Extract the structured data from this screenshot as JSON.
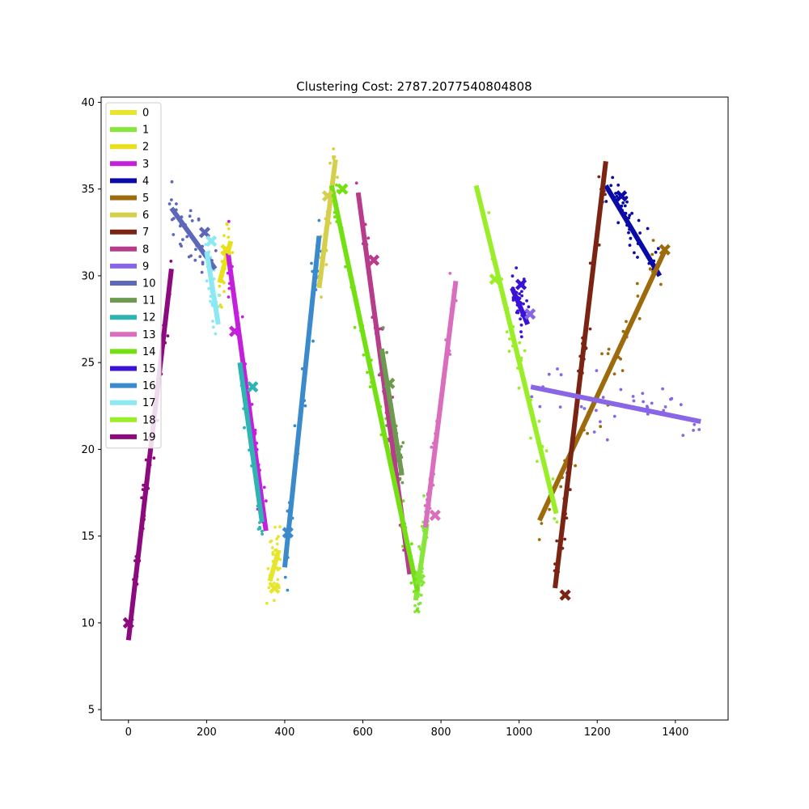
{
  "chart_data": {
    "type": "scatter",
    "title": "Clustering Cost: 2787.2077540804808",
    "xlabel": "",
    "ylabel": "",
    "xlim": [
      -70,
      1535
    ],
    "ylim": [
      4.4,
      40.3
    ],
    "xticks": [
      0,
      200,
      400,
      600,
      800,
      1000,
      1200,
      1400
    ],
    "yticks": [
      5,
      10,
      15,
      20,
      25,
      30,
      35,
      40
    ],
    "grid": false,
    "legend_position": "top-left",
    "clusters": [
      {
        "name": "0",
        "color": "#e6e62e",
        "segment": [
          [
            362,
            12.4
          ],
          [
            385,
            14.2
          ]
        ],
        "center": [
          374,
          12.0
        ]
      },
      {
        "name": "1",
        "color": "#86e63a",
        "segment": [
          [
            735,
            11.3
          ],
          [
            764,
            15.7
          ]
        ],
        "center": [
          746,
          12.5
        ]
      },
      {
        "name": "2",
        "color": "#e8e01c",
        "segment": [
          [
            233,
            29.6
          ],
          [
            262,
            32.0
          ]
        ],
        "center": [
          250,
          31.5
        ]
      },
      {
        "name": "3",
        "color": "#c41fdb",
        "segment": [
          [
            255,
            31.3
          ],
          [
            352,
            15.3
          ]
        ],
        "center": [
          272,
          26.8
        ]
      },
      {
        "name": "4",
        "color": "#0a0aa6",
        "segment": [
          [
            1222,
            35.2
          ],
          [
            1360,
            30.0
          ]
        ],
        "center": [
          1262,
          34.6
        ]
      },
      {
        "name": "5",
        "color": "#9d6a0c",
        "segment": [
          [
            1052,
            15.9
          ],
          [
            1372,
            31.4
          ]
        ],
        "center": [
          1373,
          31.5
        ]
      },
      {
        "name": "6",
        "color": "#d4d04c",
        "segment": [
          [
            488,
            29.3
          ],
          [
            530,
            36.7
          ]
        ],
        "center": [
          510,
          34.6
        ]
      },
      {
        "name": "7",
        "color": "#7a2414",
        "segment": [
          [
            1092,
            12.0
          ],
          [
            1222,
            36.6
          ]
        ],
        "center": [
          1118,
          11.6
        ]
      },
      {
        "name": "8",
        "color": "#b83c8c",
        "segment": [
          [
            588,
            34.8
          ],
          [
            720,
            12.8
          ]
        ],
        "center": [
          628,
          30.9
        ]
      },
      {
        "name": "9",
        "color": "#8866e6",
        "segment": [
          [
            1030,
            23.6
          ],
          [
            1465,
            21.6
          ]
        ],
        "center": [
          1028,
          27.8
        ]
      },
      {
        "name": "10",
        "color": "#5e68ba",
        "segment": [
          [
            110,
            33.9
          ],
          [
            222,
            30.4
          ]
        ],
        "center": [
          195,
          32.5
        ]
      },
      {
        "name": "11",
        "color": "#6b9a50",
        "segment": [
          [
            648,
            25.8
          ],
          [
            700,
            18.5
          ]
        ],
        "center": [
          668,
          23.8
        ]
      },
      {
        "name": "12",
        "color": "#2fb4b4",
        "segment": [
          [
            285,
            25.0
          ],
          [
            342,
            15.8
          ]
        ],
        "center": [
          318,
          23.6
        ]
      },
      {
        "name": "13",
        "color": "#da6ebe",
        "segment": [
          [
            760,
            15.5
          ],
          [
            838,
            29.7
          ]
        ],
        "center": [
          785,
          16.2
        ]
      },
      {
        "name": "14",
        "color": "#73e012",
        "segment": [
          [
            520,
            35.2
          ],
          [
            740,
            11.8
          ]
        ],
        "center": [
          548,
          35.0
        ]
      },
      {
        "name": "15",
        "color": "#3a12d6",
        "segment": [
          [
            982,
            29.3
          ],
          [
            1022,
            27.2
          ]
        ],
        "center": [
          1005,
          29.5
        ]
      },
      {
        "name": "16",
        "color": "#3a8acc",
        "segment": [
          [
            400,
            13.2
          ],
          [
            488,
            32.3
          ]
        ],
        "center": [
          408,
          15.2
        ]
      },
      {
        "name": "17",
        "color": "#8ce8f2",
        "segment": [
          [
            200,
            31.4
          ],
          [
            230,
            27.2
          ]
        ],
        "center": [
          212,
          32.0
        ]
      },
      {
        "name": "18",
        "color": "#9aee28",
        "segment": [
          [
            890,
            35.2
          ],
          [
            1095,
            16.3
          ]
        ],
        "center": [
          938,
          29.8
        ]
      },
      {
        "name": "19",
        "color": "#8c0a7e",
        "segment": [
          [
            0,
            9.0
          ],
          [
            110,
            30.4
          ]
        ],
        "center": [
          0,
          10.0
        ]
      }
    ]
  }
}
